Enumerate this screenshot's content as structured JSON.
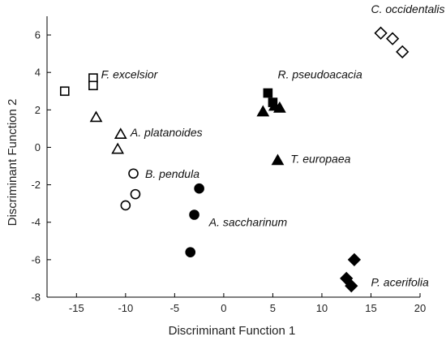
{
  "chart_data": {
    "type": "scatter",
    "title": "",
    "xlabel": "Discriminant Function 1",
    "ylabel": "Discriminant Function 2",
    "xlim": [
      -18,
      20
    ],
    "ylim": [
      -8,
      7
    ],
    "xticks": [
      -15,
      -10,
      -5,
      0,
      5,
      10,
      15,
      20
    ],
    "yticks": [
      -8,
      -6,
      -4,
      -2,
      0,
      2,
      4,
      6
    ],
    "grid": false,
    "legend": "none",
    "series": [
      {
        "name": "F. excelsior",
        "marker": "square-open",
        "x": [
          -16.2,
          -13.3,
          -13.3
        ],
        "y": [
          3.0,
          3.7,
          3.3
        ]
      },
      {
        "name": "A. platanoides",
        "marker": "triangle-open",
        "x": [
          -13.0,
          -10.5,
          -10.8
        ],
        "y": [
          1.6,
          0.7,
          -0.1
        ]
      },
      {
        "name": "B. pendula",
        "marker": "circle-open",
        "x": [
          -9.2,
          -9.0,
          -10.0
        ],
        "y": [
          -1.4,
          -2.5,
          -3.1
        ]
      },
      {
        "name": "A. saccharinum",
        "marker": "circle-filled",
        "x": [
          -2.5,
          -3.0,
          -3.4
        ],
        "y": [
          -2.2,
          -3.6,
          -5.6
        ]
      },
      {
        "name": "R. pseudoacacia",
        "marker": "square-filled",
        "x": [
          4.5,
          5.0
        ],
        "y": [
          2.9,
          2.4
        ]
      },
      {
        "name": "R. pseudoacacia",
        "marker": "triangle-filled",
        "x": [
          4.0,
          5.2,
          5.7
        ],
        "y": [
          1.9,
          2.2,
          2.1
        ]
      },
      {
        "name": "T. europaea",
        "marker": "triangle-filled",
        "x": [
          5.5
        ],
        "y": [
          -0.7
        ]
      },
      {
        "name": "C. occidentalis",
        "marker": "diamond-open",
        "x": [
          16.0,
          17.2,
          18.2
        ],
        "y": [
          6.1,
          5.8,
          5.1
        ]
      },
      {
        "name": "P. acerifolia",
        "marker": "diamond-filled",
        "x": [
          13.3,
          12.5,
          13.0
        ],
        "y": [
          -6.0,
          -7.0,
          -7.4
        ]
      }
    ],
    "annotations": [
      {
        "text": "C. occidentalis",
        "x": 15.0,
        "y": 7.4
      },
      {
        "text": "F. excelsior",
        "x": -12.5,
        "y": 3.9
      },
      {
        "text": "R. pseudoacacia",
        "x": 5.5,
        "y": 3.9
      },
      {
        "text": "A. platanoides",
        "x": -9.5,
        "y": 0.8
      },
      {
        "text": "T. europaea",
        "x": 6.8,
        "y": -0.6
      },
      {
        "text": "B. pendula",
        "x": -8.0,
        "y": -1.4
      },
      {
        "text": "A. saccharinum",
        "x": -1.5,
        "y": -4.0
      },
      {
        "text": "P. acerifolia",
        "x": 15.0,
        "y": -7.2
      }
    ],
    "colors": {
      "axis": "#000000",
      "marker": "#000000",
      "fill_open": "#ffffff"
    }
  }
}
